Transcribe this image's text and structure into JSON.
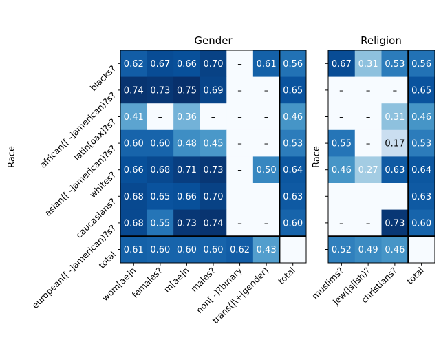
{
  "chart_data": [
    {
      "type": "heatmap",
      "title": "Gender",
      "ylabel": "Race",
      "xlabel": "",
      "colormap": "Blues",
      "vmin": 0.0,
      "vmax": 0.75,
      "rows": [
        "blacks?",
        "african([ -]american)?s?",
        "latin[oax]?s?",
        "asian([ -]american)?s?",
        "whites?",
        "caucasians?",
        "european([ -]american)?s?",
        "total"
      ],
      "columns": [
        "wom[ae]n",
        "females?",
        "m[ae]n",
        "males?",
        "non[ -]?binary",
        "trans(|\\+|gender)",
        "total"
      ],
      "values": [
        [
          0.62,
          0.67,
          0.66,
          0.7,
          null,
          0.61,
          0.56
        ],
        [
          0.74,
          0.73,
          0.75,
          0.69,
          null,
          null,
          0.65
        ],
        [
          0.41,
          null,
          0.36,
          null,
          null,
          null,
          0.46
        ],
        [
          0.6,
          0.6,
          0.48,
          0.45,
          null,
          null,
          0.53
        ],
        [
          0.66,
          0.68,
          0.71,
          0.73,
          null,
          0.5,
          0.64
        ],
        [
          0.68,
          0.65,
          0.66,
          0.7,
          null,
          null,
          0.63
        ],
        [
          0.68,
          0.55,
          0.73,
          0.74,
          null,
          null,
          0.6
        ],
        [
          0.61,
          0.6,
          0.6,
          0.6,
          0.62,
          0.43,
          null
        ]
      ],
      "labels": [
        [
          "0.62",
          "0.67",
          "0.66",
          "0.70",
          "–",
          "0.61",
          "0.56"
        ],
        [
          "0.74",
          "0.73",
          "0.75",
          "0.69",
          "–",
          "–",
          "0.65"
        ],
        [
          "0.41",
          "–",
          "0.36",
          "–",
          "–",
          "–",
          "0.46"
        ],
        [
          "0.60",
          "0.60",
          "0.48",
          "0.45",
          "–",
          "–",
          "0.53"
        ],
        [
          "0.66",
          "0.68",
          "0.71",
          "0.73",
          "–",
          "0.50",
          "0.64"
        ],
        [
          "0.68",
          "0.65",
          "0.66",
          "0.70",
          "–",
          "–",
          "0.63"
        ],
        [
          "0.68",
          "0.55",
          "0.73",
          "0.74",
          "–",
          "–",
          "0.60"
        ],
        [
          "0.61",
          "0.60",
          "0.60",
          "0.60",
          "0.62",
          "0.43",
          "–"
        ]
      ]
    },
    {
      "type": "heatmap",
      "title": "Religion",
      "ylabel": "Race",
      "xlabel": "",
      "colormap": "Blues",
      "vmin": 0.0,
      "vmax": 0.75,
      "rows": [
        "blacks?",
        "african([ -]american)?s?",
        "latin[oax]?s?",
        "asian([ -]american)?s?",
        "whites?",
        "caucasians?",
        "european([ -]american)?s?",
        "total"
      ],
      "columns": [
        "muslims?",
        "jew(|s|ish)?",
        "christians?",
        "total"
      ],
      "values": [
        [
          0.67,
          0.31,
          0.53,
          0.56
        ],
        [
          null,
          null,
          null,
          0.65
        ],
        [
          null,
          null,
          0.31,
          0.46
        ],
        [
          0.55,
          null,
          0.17,
          0.53
        ],
        [
          0.46,
          0.27,
          0.63,
          0.64
        ],
        [
          null,
          null,
          null,
          0.63
        ],
        [
          null,
          null,
          0.73,
          0.6
        ],
        [
          0.52,
          0.49,
          0.46,
          null
        ]
      ],
      "labels": [
        [
          "0.67",
          "0.31",
          "0.53",
          "0.56"
        ],
        [
          "–",
          "–",
          "–",
          "0.65"
        ],
        [
          "–",
          "–",
          "0.31",
          "0.46"
        ],
        [
          "0.55",
          "–",
          "0.17",
          "0.53"
        ],
        [
          "0.46",
          "0.27",
          "0.63",
          "0.64"
        ],
        [
          "–",
          "–",
          "–",
          "0.63"
        ],
        [
          "–",
          "–",
          "0.73",
          "0.60"
        ],
        [
          "0.52",
          "0.49",
          "0.46",
          "–"
        ]
      ]
    }
  ]
}
